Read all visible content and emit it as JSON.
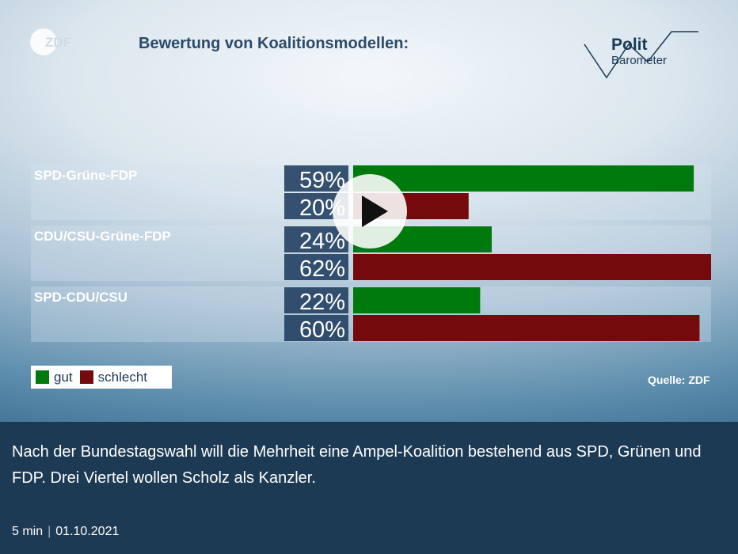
{
  "video": {
    "title": "Bewertung von Koalitionsmodellen:",
    "brand": {
      "zdf_logo_text": "ZDF",
      "politbarometer_line1": "Polit",
      "politbarometer_line2": "Barometer"
    },
    "source": "Quelle: ZDF",
    "legend": [
      {
        "label": "gut",
        "color": "#007a0c"
      },
      {
        "label": "schlecht",
        "color": "#750a0c"
      }
    ],
    "play_icon": "play-icon"
  },
  "chart_data": {
    "type": "bar",
    "orientation": "horizontal",
    "categories": [
      "SPD-Grüne-FDP",
      "CDU/CSU-Grüne-FDP",
      "SPD-CDU/CSU"
    ],
    "series": [
      {
        "name": "gut",
        "values": [
          59,
          24,
          22
        ],
        "labels": [
          "59%",
          "24%",
          "22%"
        ],
        "color": "#007a0c"
      },
      {
        "name": "schlecht",
        "values": [
          20,
          62,
          60
        ],
        "labels": [
          "20%",
          "62%",
          "60%"
        ],
        "color": "#750a0c"
      }
    ],
    "xlim": [
      0,
      62
    ],
    "legend_position": "bottom-left",
    "grid": false
  },
  "teaser": {
    "text": "Nach der Bundestagswahl will die Mehrheit eine Ampel-Koalition bestehend aus SPD, Grünen und FDP. Drei Viertel wollen Scholz als Kanzler.",
    "duration": "5 min",
    "separator": "|",
    "date": "01.10.2021"
  }
}
